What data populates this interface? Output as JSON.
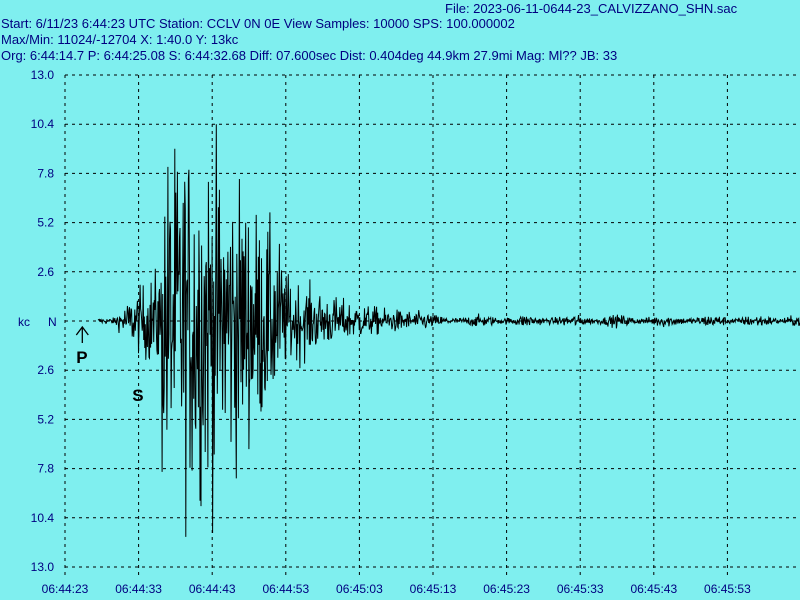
{
  "header": {
    "file_line": "File: 2023-06-11-0644-23_CALVIZZANO_SHN.sac",
    "start_line": "Start: 6/11/23  6:44:23 UTC Station: CCLV 0N 0E View Samples: 10000  SPS: 100.000002",
    "maxmin_line": "Max/Min: 11024/-12704 X: 1:40.0 Y: 13kc",
    "org_line": "Org: 6:44:14.7 P: 6:44:25.08 S: 6:44:32.68 Diff: 07.600sec Dist: 0.404deg 44.9km 27.9mi  Mag: Ml?? JB: 33"
  },
  "chart_data": {
    "type": "line",
    "y_unit_label": "kc",
    "channel_label": "N",
    "ylim": [
      -13.0,
      13.0
    ],
    "y_ticks": [
      13.0,
      10.4,
      7.8,
      5.2,
      2.6,
      0,
      -2.6,
      -5.2,
      -7.8,
      -10.4,
      -13.0
    ],
    "y_tick_labels": [
      "13.0",
      "10.4",
      "7.8",
      "5.2",
      "2.6",
      "",
      "2.6",
      "5.2",
      "7.8",
      "10.4",
      "13.0"
    ],
    "x_tick_labels": [
      "06:44:23",
      "06:44:33",
      "06:44:43",
      "06:44:53",
      "06:45:03",
      "06:45:13",
      "06:45:23",
      "06:45:33",
      "06:45:43",
      "06:45:53"
    ],
    "x_range_seconds": 106,
    "grid": true,
    "phase_markers": [
      {
        "label": "P",
        "time_s": 2.08
      },
      {
        "label": "S",
        "time_s": 9.68
      }
    ],
    "max_value": 11024,
    "min_value": -12704,
    "colors": {
      "background": "#7fefef",
      "trace": "#000000",
      "grid": "#000000",
      "text": "#000080"
    }
  }
}
